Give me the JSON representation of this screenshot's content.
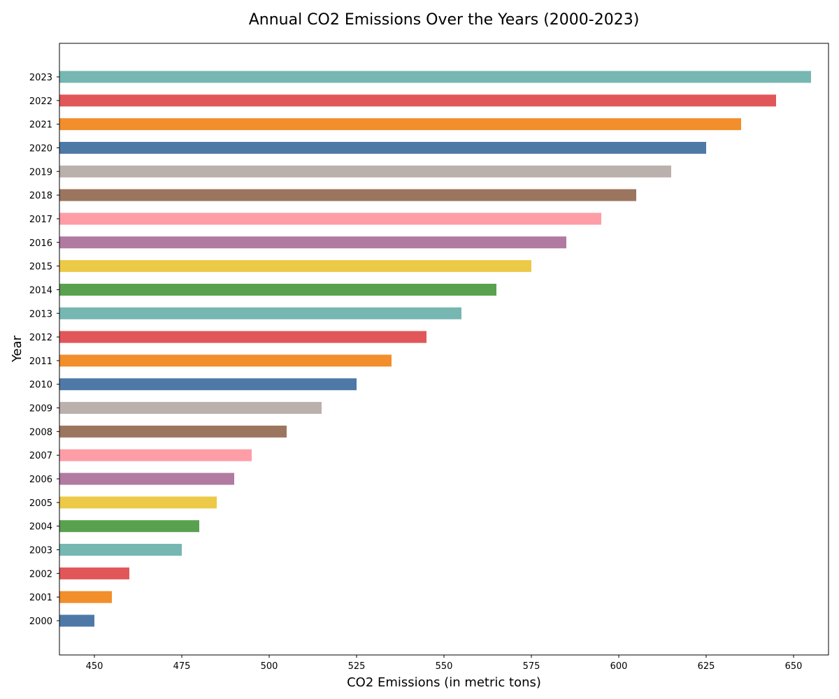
{
  "chart_data": {
    "type": "bar",
    "orientation": "horizontal",
    "title": "Annual CO2 Emissions Over the Years (2000-2023)",
    "xlabel": "CO2 Emissions (in metric tons)",
    "ylabel": "Year",
    "xlim": [
      440,
      660
    ],
    "xticks": [
      450,
      475,
      500,
      525,
      550,
      575,
      600,
      625,
      650
    ],
    "grid": false,
    "categories": [
      "2000",
      "2001",
      "2002",
      "2003",
      "2004",
      "2005",
      "2006",
      "2007",
      "2008",
      "2009",
      "2010",
      "2011",
      "2012",
      "2013",
      "2014",
      "2015",
      "2016",
      "2017",
      "2018",
      "2019",
      "2020",
      "2021",
      "2022",
      "2023"
    ],
    "values": [
      450,
      455,
      460,
      475,
      480,
      485,
      490,
      495,
      505,
      515,
      525,
      535,
      545,
      555,
      565,
      575,
      585,
      595,
      605,
      615,
      625,
      635,
      645,
      655
    ],
    "colors": [
      "#4e79a7",
      "#f28e2b",
      "#e15759",
      "#76b7b2",
      "#59a14f",
      "#edc948",
      "#b07aa1",
      "#ff9da7",
      "#9c755f",
      "#bab0ac",
      "#4e79a7",
      "#f28e2b",
      "#e15759",
      "#76b7b2",
      "#59a14f",
      "#edc948",
      "#b07aa1",
      "#ff9da7",
      "#9c755f",
      "#bab0ac",
      "#4e79a7",
      "#f28e2b",
      "#e15759",
      "#76b7b2"
    ]
  }
}
